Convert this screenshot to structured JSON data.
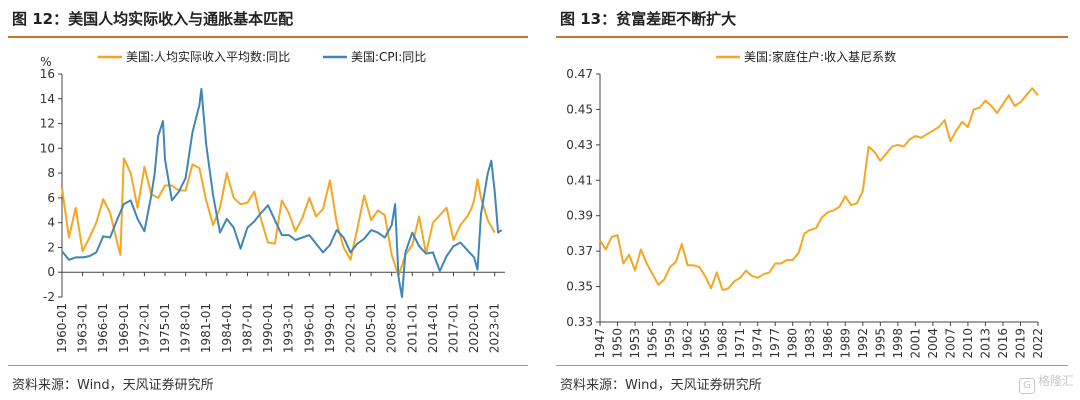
{
  "figures": {
    "left": {
      "title": "图 12：美国人均实际收入与通胀基本匹配",
      "source": "资料来源：Wind，天风证券研究所"
    },
    "right": {
      "title": "图 13：贫富差距不断扩大",
      "source": "资料来源：Wind，天风证券研究所"
    }
  },
  "watermark": {
    "text": "格隆汇",
    "icon": "watermark-logo-icon"
  },
  "colors": {
    "accent": "#c9722b",
    "orange": "#f5a623",
    "blue": "#3f86b6"
  },
  "chart_data": [
    {
      "type": "line",
      "unit_label": "%",
      "ylim": [
        -2,
        16
      ],
      "yticks": [
        -2,
        0,
        2,
        4,
        6,
        8,
        10,
        12,
        14,
        16
      ],
      "xlim": [
        1960,
        2024.5
      ],
      "xticks": [
        "1960-01",
        "1963-01",
        "1966-01",
        "1969-01",
        "1972-01",
        "1975-01",
        "1978-01",
        "1981-01",
        "1984-01",
        "1987-01",
        "1990-01",
        "1993-01",
        "1996-01",
        "1999-01",
        "2002-01",
        "2005-01",
        "2008-01",
        "2011-01",
        "2014-01",
        "2017-01",
        "2020-01",
        "2023-01"
      ],
      "grid": false,
      "legend_position": "top",
      "series": [
        {
          "name": "美国:人均实际收入平均数:同比",
          "color": "#f5a623",
          "x": [
            1960,
            1961,
            1962,
            1963,
            1964,
            1965,
            1966,
            1967,
            1968,
            1968.5,
            1969,
            1970,
            1971,
            1972,
            1973,
            1974,
            1975,
            1976,
            1977,
            1978,
            1979,
            1980,
            1981,
            1982,
            1983,
            1984,
            1985,
            1986,
            1987,
            1988,
            1989,
            1990,
            1991,
            1992,
            1993,
            1994,
            1995,
            1996,
            1997,
            1998,
            1999,
            2000,
            2001,
            2002,
            2003,
            2004,
            2005,
            2006,
            2007,
            2008,
            2009,
            2010,
            2011,
            2012,
            2013,
            2014,
            2015,
            2016,
            2017,
            2018,
            2019,
            2019.5,
            2020,
            2020.5,
            2021,
            2022,
            2023
          ],
          "y": [
            6.8,
            2.8,
            5.2,
            1.7,
            2.8,
            4.0,
            5.9,
            4.8,
            2.5,
            1.4,
            9.2,
            8.0,
            5.2,
            8.5,
            6.3,
            6.0,
            7.0,
            7.0,
            6.6,
            6.6,
            8.7,
            8.4,
            5.8,
            3.8,
            5.2,
            8.0,
            6.0,
            5.5,
            5.6,
            6.5,
            4.2,
            2.4,
            2.3,
            5.8,
            4.8,
            3.3,
            4.4,
            6.0,
            4.5,
            5.1,
            7.4,
            4.0,
            2.0,
            1.0,
            3.5,
            6.2,
            4.2,
            5.0,
            4.6,
            1.4,
            -0.3,
            1.4,
            2.2,
            4.5,
            1.5,
            4.0,
            4.6,
            5.2,
            2.6,
            3.8,
            4.5,
            5.0,
            5.8,
            7.5,
            6.0,
            4.2,
            3.2
          ]
        },
        {
          "name": "美国:CPI:同比",
          "color": "#3f86b6",
          "x": [
            1960,
            1961,
            1962,
            1963,
            1964,
            1965,
            1966,
            1967,
            1968,
            1969,
            1970,
            1971,
            1972,
            1973,
            1973.5,
            1974,
            1974.7,
            1975,
            1976,
            1977,
            1978,
            1979,
            1980,
            1980.3,
            1981,
            1982,
            1983,
            1984,
            1985,
            1986,
            1987,
            1988,
            1989,
            1990,
            1991,
            1992,
            1993,
            1994,
            1995,
            1996,
            1997,
            1998,
            1999,
            2000,
            2001,
            2002,
            2003,
            2004,
            2005,
            2006,
            2007,
            2008,
            2008.5,
            2009,
            2009.5,
            2010,
            2011,
            2012,
            2013,
            2014,
            2015,
            2016,
            2017,
            2018,
            2019,
            2020,
            2020.5,
            2021,
            2022,
            2022.5,
            2023,
            2023.5,
            2024
          ],
          "y": [
            1.7,
            1.0,
            1.2,
            1.2,
            1.3,
            1.6,
            2.9,
            2.8,
            4.2,
            5.5,
            5.8,
            4.3,
            3.3,
            6.2,
            8.0,
            11.0,
            12.2,
            9.1,
            5.8,
            6.5,
            7.6,
            11.3,
            13.5,
            14.8,
            10.3,
            6.2,
            3.2,
            4.3,
            3.6,
            1.9,
            3.6,
            4.1,
            4.8,
            5.4,
            4.2,
            3.0,
            3.0,
            2.6,
            2.8,
            3.0,
            2.3,
            1.6,
            2.2,
            3.4,
            2.8,
            1.6,
            2.3,
            2.7,
            3.4,
            3.2,
            2.8,
            3.8,
            5.5,
            -0.4,
            -2.0,
            1.6,
            3.2,
            2.1,
            1.5,
            1.6,
            0.1,
            1.3,
            2.1,
            2.4,
            1.8,
            1.2,
            0.2,
            4.7,
            8.0,
            9.0,
            6.5,
            3.2,
            3.4
          ]
        }
      ]
    },
    {
      "type": "line",
      "ylim": [
        0.33,
        0.47
      ],
      "yticks": [
        "0.33",
        "0.35",
        "0.37",
        "0.39",
        "0.41",
        "0.43",
        "0.45",
        "0.47"
      ],
      "xlim": [
        1947,
        2022
      ],
      "xticks": [
        "1947",
        "1950",
        "1953",
        "1956",
        "1959",
        "1962",
        "1965",
        "1968",
        "1971",
        "1974",
        "1977",
        "1980",
        "1983",
        "1986",
        "1989",
        "1992",
        "1995",
        "1998",
        "2001",
        "2004",
        "2007",
        "2010",
        "2013",
        "2016",
        "2019",
        "2022"
      ],
      "grid": false,
      "legend_position": "top",
      "series": [
        {
          "name": "美国:家庭住户:收入基尼系数",
          "color": "#f5a623",
          "x": [
            1947,
            1948,
            1949,
            1950,
            1951,
            1952,
            1953,
            1954,
            1955,
            1956,
            1957,
            1958,
            1959,
            1960,
            1961,
            1962,
            1963,
            1964,
            1965,
            1966,
            1967,
            1968,
            1969,
            1970,
            1971,
            1972,
            1973,
            1974,
            1975,
            1976,
            1977,
            1978,
            1979,
            1980,
            1981,
            1982,
            1983,
            1984,
            1985,
            1986,
            1987,
            1988,
            1989,
            1990,
            1991,
            1992,
            1993,
            1994,
            1995,
            1996,
            1997,
            1998,
            1999,
            2000,
            2001,
            2002,
            2003,
            2004,
            2005,
            2006,
            2007,
            2008,
            2009,
            2010,
            2011,
            2012,
            2013,
            2014,
            2015,
            2016,
            2017,
            2018,
            2019,
            2020,
            2021,
            2022
          ],
          "y": [
            0.376,
            0.371,
            0.378,
            0.379,
            0.363,
            0.368,
            0.359,
            0.371,
            0.363,
            0.357,
            0.351,
            0.354,
            0.361,
            0.364,
            0.374,
            0.362,
            0.362,
            0.361,
            0.356,
            0.349,
            0.358,
            0.348,
            0.349,
            0.353,
            0.355,
            0.359,
            0.356,
            0.355,
            0.357,
            0.358,
            0.363,
            0.363,
            0.365,
            0.365,
            0.369,
            0.38,
            0.382,
            0.383,
            0.389,
            0.392,
            0.393,
            0.395,
            0.401,
            0.396,
            0.397,
            0.404,
            0.429,
            0.426,
            0.421,
            0.425,
            0.429,
            0.43,
            0.429,
            0.433,
            0.435,
            0.434,
            0.436,
            0.438,
            0.44,
            0.444,
            0.432,
            0.438,
            0.443,
            0.44,
            0.45,
            0.451,
            0.455,
            0.452,
            0.448,
            0.453,
            0.458,
            0.452,
            0.454,
            0.458,
            0.462,
            0.458
          ]
        }
      ]
    }
  ]
}
